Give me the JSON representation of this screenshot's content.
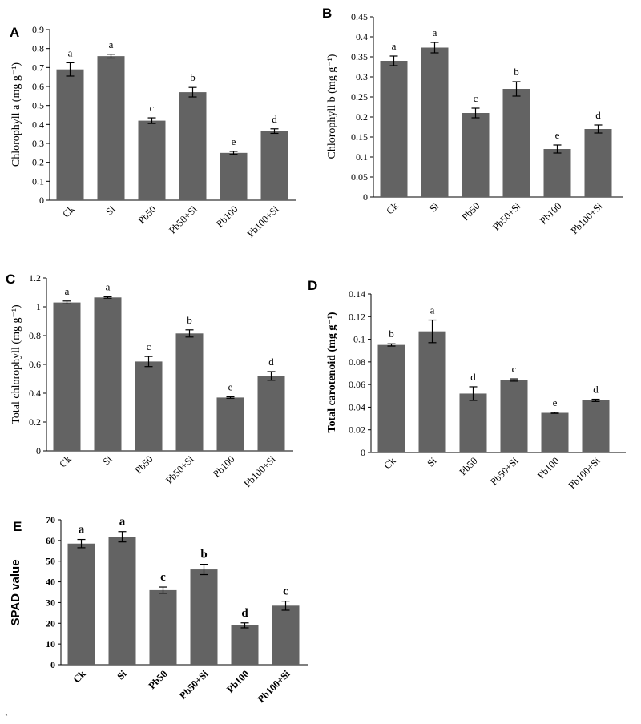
{
  "chart_data": [
    {
      "id": "A",
      "type": "bar",
      "panel_label": "A",
      "title": "",
      "ylabel": "Chlorophyll a (mg g⁻¹)",
      "xlabel": "",
      "categories": [
        "Ck",
        "Si",
        "Pb50",
        "Pb50+Si",
        "Pb100",
        "Pb100+Si"
      ],
      "values": [
        0.69,
        0.76,
        0.42,
        0.57,
        0.25,
        0.365
      ],
      "errors": [
        0.035,
        0.01,
        0.015,
        0.025,
        0.008,
        0.012
      ],
      "significance": [
        "a",
        "a",
        "c",
        "b",
        "e",
        "d"
      ],
      "ylim": [
        0,
        0.9
      ],
      "yticks": [
        "0",
        "0.1",
        "0.2",
        "0.3",
        "0.4",
        "0.5",
        "0.6",
        "0.7",
        "0.8",
        "0.9"
      ],
      "grid": false
    },
    {
      "id": "B",
      "type": "bar",
      "panel_label": "B",
      "title": "",
      "ylabel": "Chlorophyll b (mg g⁻¹)",
      "xlabel": "",
      "categories": [
        "Ck",
        "Si",
        "Pb50",
        "Pb50+Si",
        "Pb100",
        "Pb100+Si"
      ],
      "values": [
        0.34,
        0.373,
        0.21,
        0.27,
        0.12,
        0.17
      ],
      "errors": [
        0.012,
        0.013,
        0.012,
        0.018,
        0.01,
        0.01
      ],
      "significance": [
        "a",
        "a",
        "c",
        "b",
        "e",
        "d"
      ],
      "ylim": [
        0,
        0.45
      ],
      "yticks": [
        "0",
        "0.05",
        "0.1",
        "0.15",
        "0.2",
        "0.25",
        "0.3",
        "0.35",
        "0.4",
        "0.45"
      ],
      "grid": false
    },
    {
      "id": "C",
      "type": "bar",
      "panel_label": "C",
      "title": "",
      "ylabel": "Total chlorophyll (mg g⁻¹)",
      "xlabel": "",
      "categories": [
        "Ck",
        "Si",
        "Pb50",
        "Pb50+Si",
        "Pb100",
        "Pb100+Si"
      ],
      "values": [
        1.03,
        1.065,
        0.62,
        0.815,
        0.37,
        0.52
      ],
      "errors": [
        0.01,
        0.005,
        0.035,
        0.025,
        0.005,
        0.03
      ],
      "significance": [
        "a",
        "a",
        "c",
        "b",
        "e",
        "d"
      ],
      "ylim": [
        0,
        1.2
      ],
      "yticks": [
        "0",
        "0.2",
        "0.4",
        "0.6",
        "0.8",
        "1",
        "1.2"
      ],
      "grid": false
    },
    {
      "id": "D",
      "type": "bar",
      "panel_label": "D",
      "title": "",
      "ylabel": "Total carotenoid (mg g⁻¹)",
      "xlabel": "",
      "categories": [
        "Ck",
        "Si",
        "Pb50",
        "Pb50+Si",
        "Pb100",
        "Pb100+Si"
      ],
      "values": [
        0.095,
        0.107,
        0.052,
        0.064,
        0.035,
        0.046
      ],
      "errors": [
        0.001,
        0.01,
        0.006,
        0.001,
        0.0005,
        0.001
      ],
      "significance": [
        "b",
        "a",
        "d",
        "c",
        "e",
        "d"
      ],
      "ylim": [
        0,
        0.14
      ],
      "yticks": [
        "0",
        "0.02",
        "0.04",
        "0.06",
        "0.08",
        "0.1",
        "0.12",
        "0.14"
      ],
      "grid": false
    },
    {
      "id": "E",
      "type": "bar",
      "panel_label": "E",
      "title": "",
      "ylabel": "SPAD value",
      "xlabel": "",
      "categories": [
        "Ck",
        "Si",
        "Pb50",
        "Pb50+Si",
        "Pb100",
        "Pb100+Si"
      ],
      "values": [
        58.5,
        61.8,
        36,
        46,
        19,
        28.5
      ],
      "errors": [
        2,
        2.5,
        1.5,
        2.5,
        1.2,
        2.2
      ],
      "significance": [
        "a",
        "a",
        "c",
        "b",
        "d",
        "c"
      ],
      "ylim": [
        0,
        70
      ],
      "yticks": [
        "0",
        "10",
        "20",
        "30",
        "40",
        "50",
        "60",
        "70"
      ],
      "grid": false
    }
  ],
  "stray_mark": "`"
}
